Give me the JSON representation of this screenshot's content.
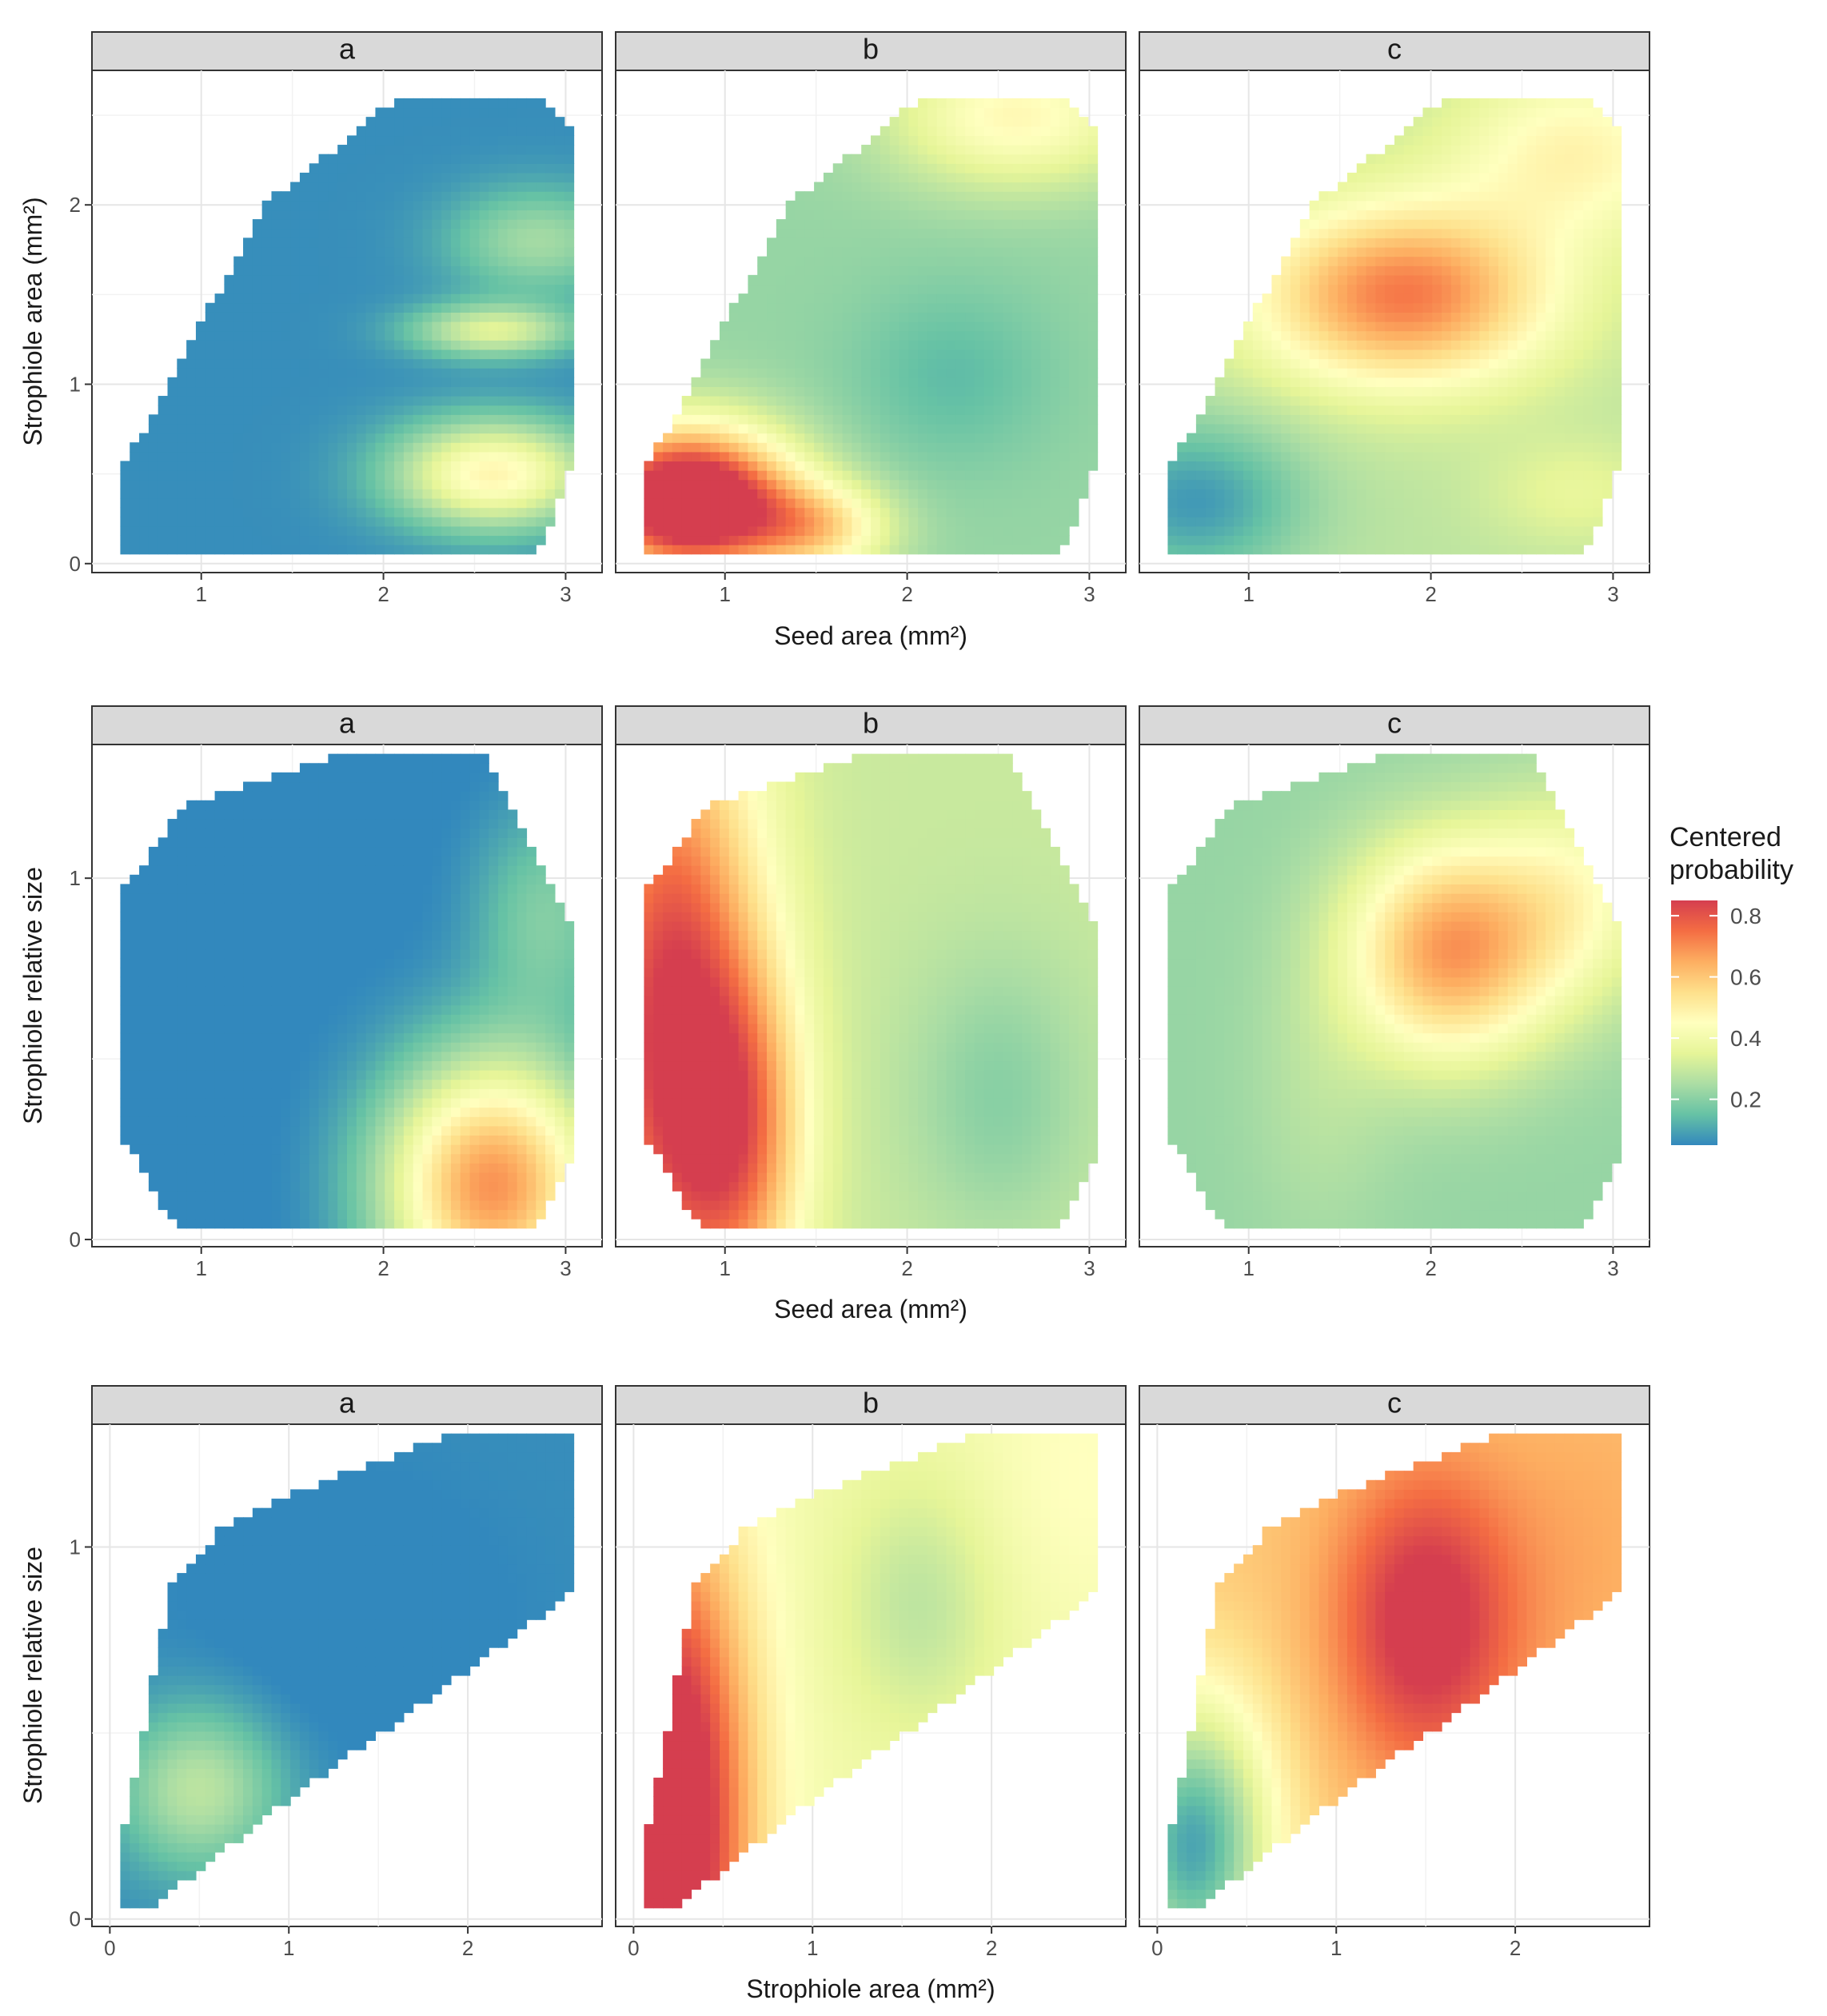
{
  "legend": {
    "title_line1": "Centered",
    "title_line2": "probability",
    "breaks": [
      "0.8",
      "0.6",
      "0.4",
      "0.2"
    ],
    "break_values": [
      0.8,
      0.6,
      0.4,
      0.2
    ],
    "range": [
      0.05,
      0.85
    ]
  },
  "palette": [
    "#3288BD",
    "#66C2A5",
    "#ABDDA4",
    "#E6F598",
    "#FFFFBF",
    "#FEE08B",
    "#FDAE61",
    "#F46D43",
    "#D53E4F"
  ],
  "chart_data": [
    {
      "type": "heatmap",
      "row": 1,
      "xlabel": "Seed area (mm²)",
      "ylabel": "Strophiole area (mm²)",
      "xlim": [
        0.4,
        3.2
      ],
      "ylim": [
        -0.05,
        2.75
      ],
      "xticks": [
        1,
        2,
        3
      ],
      "xtick_labels": [
        "1",
        "2",
        "3"
      ],
      "yticks": [
        0,
        1,
        2
      ],
      "ytick_labels": [
        "0",
        "1",
        "2"
      ],
      "yminor": [
        0.5,
        1.5,
        2.5
      ],
      "region": [
        [
          0.55,
          0.05
        ],
        [
          2.85,
          0.05
        ],
        [
          3.05,
          0.6
        ],
        [
          3.05,
          2.4
        ],
        [
          2.9,
          2.58
        ],
        [
          2.05,
          2.58
        ],
        [
          1.35,
          2.0
        ],
        [
          0.55,
          0.5
        ]
      ],
      "facets": [
        {
          "label": "a",
          "field": [
            [
              2.6,
              0.5,
              0.42,
              0.55,
              0.3
            ],
            [
              2.6,
              1.3,
              0.28,
              0.45,
              0.15
            ],
            [
              2.85,
              1.8,
              0.18,
              0.5,
              0.3
            ]
          ],
          "base": 0.06
        },
        {
          "label": "b",
          "field": [
            [
              0.8,
              0.35,
              0.85,
              0.55,
              0.4
            ],
            [
              1.5,
              0.2,
              0.3,
              0.4,
              0.25
            ],
            [
              2.25,
              1.05,
              -0.08,
              0.55,
              0.5
            ],
            [
              2.6,
              2.5,
              0.25,
              0.7,
              0.4
            ]
          ],
          "base": 0.22
        },
        {
          "label": "c",
          "field": [
            [
              1.85,
              1.5,
              0.45,
              0.8,
              0.5
            ],
            [
              2.8,
              2.3,
              0.2,
              0.7,
              0.5
            ],
            [
              0.7,
              0.35,
              -0.2,
              0.6,
              0.45
            ],
            [
              2.8,
              0.4,
              0.08,
              0.5,
              0.3
            ]
          ],
          "base": 0.28
        }
      ]
    },
    {
      "type": "heatmap",
      "row": 2,
      "xlabel": "Seed area (mm²)",
      "ylabel": "Strophiole relative size",
      "xlim": [
        0.4,
        3.2
      ],
      "ylim": [
        -0.02,
        1.37
      ],
      "xticks": [
        1,
        2,
        3
      ],
      "xtick_labels": [
        "1",
        "2",
        "3"
      ],
      "yticks": [
        0,
        1
      ],
      "ytick_labels": [
        "0",
        "1"
      ],
      "yminor": [
        0.5
      ],
      "region": [
        [
          0.85,
          0.04
        ],
        [
          2.85,
          0.04
        ],
        [
          3.05,
          0.25
        ],
        [
          3.05,
          0.85
        ],
        [
          2.55,
          1.34
        ],
        [
          1.75,
          1.34
        ],
        [
          0.9,
          1.2
        ],
        [
          0.55,
          0.95
        ],
        [
          0.55,
          0.3
        ]
      ],
      "facets": [
        {
          "label": "a",
          "field": [
            [
              2.6,
              0.15,
              0.65,
              0.6,
              0.35
            ],
            [
              2.9,
              0.9,
              0.15,
              0.4,
              0.3
            ]
          ],
          "base": 0.04
        },
        {
          "label": "b",
          "field": [
            [
              0.7,
              0.6,
              0.55,
              0.5,
              0.9
            ],
            [
              1.1,
              0.3,
              0.3,
              0.35,
              0.45
            ],
            [
              2.5,
              0.4,
              -0.1,
              0.5,
              0.4
            ]
          ],
          "base": 0.3
        },
        {
          "label": "c",
          "field": [
            [
              2.1,
              0.8,
              0.45,
              0.55,
              0.3
            ],
            [
              2.8,
              0.95,
              0.2,
              0.5,
              0.3
            ],
            [
              1.4,
              0.4,
              0.05,
              0.4,
              0.4
            ]
          ],
          "base": 0.22
        }
      ]
    },
    {
      "type": "heatmap",
      "row": 3,
      "xlabel": "Strophiole area (mm²)",
      "ylabel": "Strophiole relative size",
      "xlim": [
        -0.1,
        2.75
      ],
      "ylim": [
        -0.02,
        1.33
      ],
      "xticks": [
        0,
        1,
        2
      ],
      "xtick_labels": [
        "0",
        "1",
        "2"
      ],
      "yticks": [
        0,
        1
      ],
      "ytick_labels": [
        "0",
        "1"
      ],
      "yminor": [
        0.5
      ],
      "region": [
        [
          0.05,
          0.04
        ],
        [
          0.25,
          0.04
        ],
        [
          1.0,
          0.32
        ],
        [
          2.6,
          0.88
        ],
        [
          2.6,
          1.3
        ],
        [
          1.9,
          1.3
        ],
        [
          1.1,
          1.16
        ],
        [
          0.6,
          1.04
        ],
        [
          0.35,
          0.9
        ],
        [
          0.05,
          0.18
        ]
      ],
      "facets": [
        {
          "label": "a",
          "field": [
            [
              0.5,
              0.35,
              0.22,
              0.45,
              0.22
            ],
            [
              1.3,
              0.8,
              -0.04,
              0.8,
              0.35
            ]
          ],
          "base": 0.06
        },
        {
          "label": "b",
          "field": [
            [
              0.2,
              0.25,
              0.6,
              0.45,
              0.8
            ],
            [
              1.6,
              0.85,
              -0.12,
              0.45,
              0.35
            ],
            [
              2.5,
              1.2,
              0.05,
              0.6,
              0.4
            ]
          ],
          "base": 0.4
        },
        {
          "label": "c",
          "field": [
            [
              1.5,
              0.8,
              0.3,
              0.5,
              0.4
            ],
            [
              0.2,
              0.2,
              -0.5,
              0.45,
              0.4
            ],
            [
              2.4,
              1.0,
              0.05,
              0.6,
              0.5
            ]
          ],
          "base": 0.6
        }
      ]
    }
  ]
}
